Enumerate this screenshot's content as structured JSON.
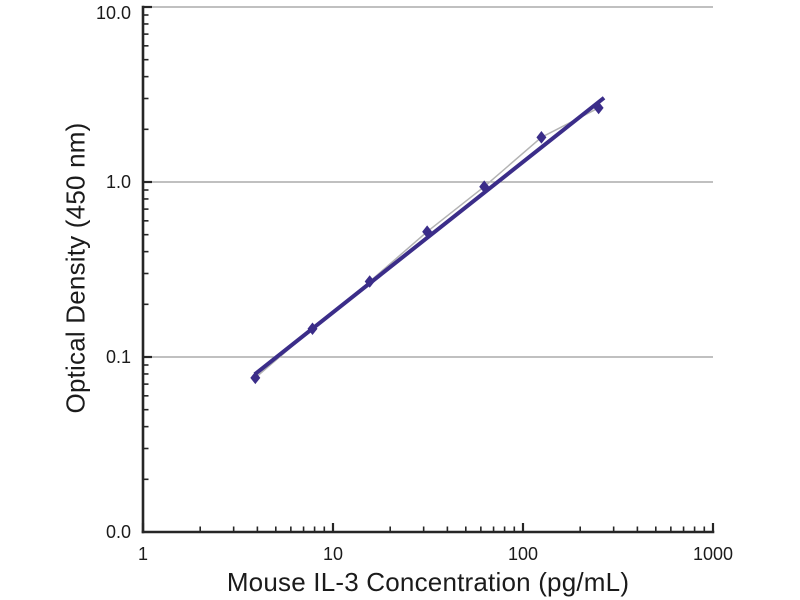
{
  "figure": {
    "background_color": "#ffffff"
  },
  "chart_data": {
    "type": "scatter",
    "title": "",
    "xlabel": "Mouse IL-3 Concentration (pg/mL)",
    "ylabel": "Optical Density (450 nm)",
    "legend_position": "none",
    "grid": "horizontal-major-only",
    "x_axis": {
      "scale": "log",
      "min": 1,
      "max": 1000,
      "ticks": [
        {
          "value": 1,
          "label": "1"
        },
        {
          "value": 10,
          "label": "10"
        },
        {
          "value": 100,
          "label": "100"
        },
        {
          "value": 1000,
          "label": "1000"
        }
      ],
      "minor_tick_multipliers": [
        2,
        3,
        4,
        5,
        6,
        7,
        8,
        9
      ],
      "minor_tick_decades": [
        1,
        10,
        100
      ]
    },
    "y_axis": {
      "scale": "log",
      "top_value": 10,
      "bottom_value": 0.01,
      "ticks": [
        {
          "value": 10,
          "label": "10.0"
        },
        {
          "value": 1,
          "label": "1.0"
        },
        {
          "value": 0.1,
          "label": "0.1"
        },
        {
          "value": 0.01,
          "label": "0.0"
        }
      ],
      "gridline_values": [
        10,
        1,
        0.1
      ],
      "minor_tick_multipliers": [
        2,
        3,
        4,
        5,
        6,
        7,
        8,
        9
      ],
      "minor_tick_decades": [
        1,
        0.1,
        0.01
      ]
    },
    "series": [
      {
        "name": "point-connector-line",
        "type": "line",
        "color": "#b3b3b3",
        "width": 1.5,
        "points": [
          {
            "x": 3.9,
            "y": 0.076
          },
          {
            "x": 7.8,
            "y": 0.145
          },
          {
            "x": 15.6,
            "y": 0.27
          },
          {
            "x": 31.3,
            "y": 0.52
          },
          {
            "x": 62.5,
            "y": 0.94
          },
          {
            "x": 125,
            "y": 1.8
          },
          {
            "x": 250,
            "y": 2.65
          }
        ]
      },
      {
        "name": "log-log-fit-line",
        "type": "line",
        "color": "#3b2d89",
        "width": 4,
        "points": [
          {
            "x": 3.95,
            "y": 0.081
          },
          {
            "x": 262,
            "y": 2.98
          }
        ]
      },
      {
        "name": "standard-curve-points",
        "type": "scatter",
        "marker": "diamond",
        "color": "#3b2d89",
        "points": [
          {
            "x": 3.9,
            "y": 0.076
          },
          {
            "x": 7.8,
            "y": 0.145
          },
          {
            "x": 15.6,
            "y": 0.27
          },
          {
            "x": 31.3,
            "y": 0.52
          },
          {
            "x": 62.5,
            "y": 0.94
          },
          {
            "x": 125,
            "y": 1.8
          },
          {
            "x": 250,
            "y": 2.65
          }
        ]
      }
    ],
    "colors": {
      "curve": "#3b2d89",
      "connector": "#b3b3b3",
      "gridline": "#9b9b9b",
      "axis": "#262626",
      "text": "#1b1b1b"
    }
  }
}
